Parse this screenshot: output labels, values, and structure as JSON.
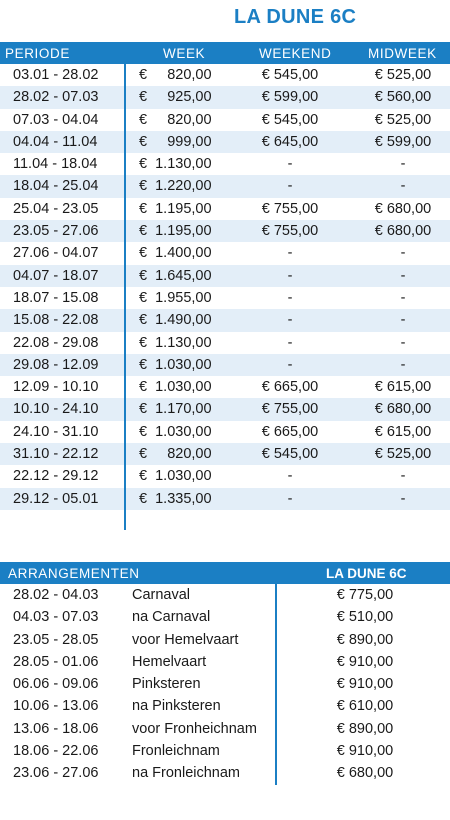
{
  "title": "LA DUNE 6C",
  "prices": {
    "headers": {
      "periode": "PERIODE",
      "week": "WEEK",
      "weekend": "WEEKEND",
      "midweek": "MIDWEEK"
    },
    "rows": [
      {
        "periode": "03.01 - 28.02",
        "week": "€     820,00",
        "weekend": "€ 545,00",
        "midweek": "€ 525,00"
      },
      {
        "periode": "28.02 - 07.03",
        "week": "€     925,00",
        "weekend": "€ 599,00",
        "midweek": "€ 560,00"
      },
      {
        "periode": "07.03 - 04.04",
        "week": "€     820,00",
        "weekend": "€ 545,00",
        "midweek": "€ 525,00"
      },
      {
        "periode": "04.04 - 11.04",
        "week": "€     999,00",
        "weekend": "€ 645,00",
        "midweek": "€ 599,00"
      },
      {
        "periode": "11.04 - 18.04",
        "week": "€  1.130,00",
        "weekend": "-",
        "midweek": "-"
      },
      {
        "periode": "18.04 - 25.04",
        "week": "€  1.220,00",
        "weekend": "-",
        "midweek": "-"
      },
      {
        "periode": "25.04 - 23.05",
        "week": "€  1.195,00",
        "weekend": "€ 755,00",
        "midweek": "€ 680,00"
      },
      {
        "periode": "23.05 - 27.06",
        "week": "€  1.195,00",
        "weekend": "€ 755,00",
        "midweek": "€ 680,00"
      },
      {
        "periode": "27.06 - 04.07",
        "week": "€  1.400,00",
        "weekend": "-",
        "midweek": "-"
      },
      {
        "periode": "04.07 - 18.07",
        "week": "€  1.645,00",
        "weekend": "-",
        "midweek": "-"
      },
      {
        "periode": "18.07 - 15.08",
        "week": "€  1.955,00",
        "weekend": "-",
        "midweek": "-"
      },
      {
        "periode": "15.08 - 22.08",
        "week": "€  1.490,00",
        "weekend": "-",
        "midweek": "-"
      },
      {
        "periode": "22.08 - 29.08",
        "week": "€  1.130,00",
        "weekend": "-",
        "midweek": "-"
      },
      {
        "periode": "29.08 - 12.09",
        "week": "€  1.030,00",
        "weekend": "-",
        "midweek": "-"
      },
      {
        "periode": "12.09 - 10.10",
        "week": "€  1.030,00",
        "weekend": "€ 665,00",
        "midweek": "€ 615,00"
      },
      {
        "periode": "10.10 - 24.10",
        "week": "€  1.170,00",
        "weekend": "€ 755,00",
        "midweek": "€ 680,00"
      },
      {
        "periode": "24.10 - 31.10",
        "week": "€  1.030,00",
        "weekend": "€ 665,00",
        "midweek": "€ 615,00"
      },
      {
        "periode": "31.10 - 22.12",
        "week": "€     820,00",
        "weekend": "€ 545,00",
        "midweek": "€ 525,00"
      },
      {
        "periode": "22.12 - 29.12",
        "week": "€  1.030,00",
        "weekend": "-",
        "midweek": "-"
      },
      {
        "periode": "29.12 - 05.01",
        "week": "€  1.335,00",
        "weekend": "-",
        "midweek": "-"
      }
    ]
  },
  "arrangements": {
    "headers": {
      "label": "ARRANGEMENTEN",
      "name": "LA DUNE 6C"
    },
    "rows": [
      {
        "periode": "28.02 - 04.03",
        "name": "Carnaval",
        "price": "€ 775,00"
      },
      {
        "periode": "04.03 - 07.03",
        "name": "na Carnaval",
        "price": "€ 510,00"
      },
      {
        "periode": "23.05 - 28.05",
        "name": "voor Hemelvaart",
        "price": "€ 890,00"
      },
      {
        "periode": "28.05 - 01.06",
        "name": "Hemelvaart",
        "price": "€ 910,00"
      },
      {
        "periode": "06.06 - 09.06",
        "name": "Pinksteren",
        "price": "€ 910,00"
      },
      {
        "periode": "10.06 - 13.06",
        "name": "na Pinksteren",
        "price": "€ 610,00"
      },
      {
        "periode": "13.06 - 18.06",
        "name": "voor Fronheichnam",
        "price": "€ 890,00"
      },
      {
        "periode": "18.06 - 22.06",
        "name": "Fronleichnam",
        "price": "€ 910,00"
      },
      {
        "periode": "23.06 - 27.06",
        "name": "na Fronleichnam",
        "price": "€ 680,00"
      }
    ]
  },
  "colors": {
    "accent": "#1b7fc4",
    "row_alt": "#e3eef8"
  }
}
